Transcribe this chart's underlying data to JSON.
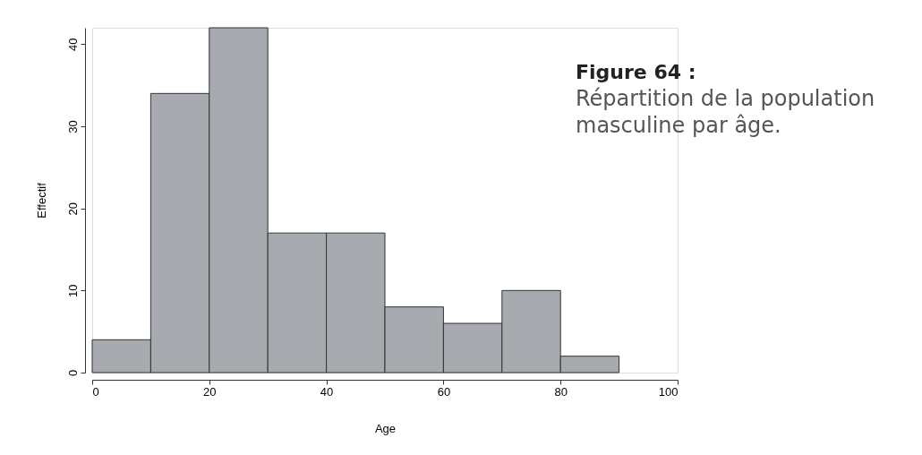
{
  "chart_data": {
    "type": "histogram",
    "title": "Figure 64 :",
    "subtitle": "Répartition de la population\nmasculine par âge.",
    "xlabel": "Age",
    "ylabel": "Effectif",
    "bins": [
      0,
      10,
      20,
      30,
      40,
      50,
      60,
      70,
      80,
      90
    ],
    "values": [
      4,
      34,
      42,
      17,
      17,
      8,
      6,
      10,
      2
    ],
    "color": "#a7aaae",
    "xlim": [
      0,
      100
    ],
    "xticks": [
      0,
      20,
      40,
      60,
      80,
      100
    ],
    "ylim": [
      0,
      42
    ],
    "yticks": [
      0,
      10,
      20,
      30,
      40
    ],
    "grid": false
  }
}
